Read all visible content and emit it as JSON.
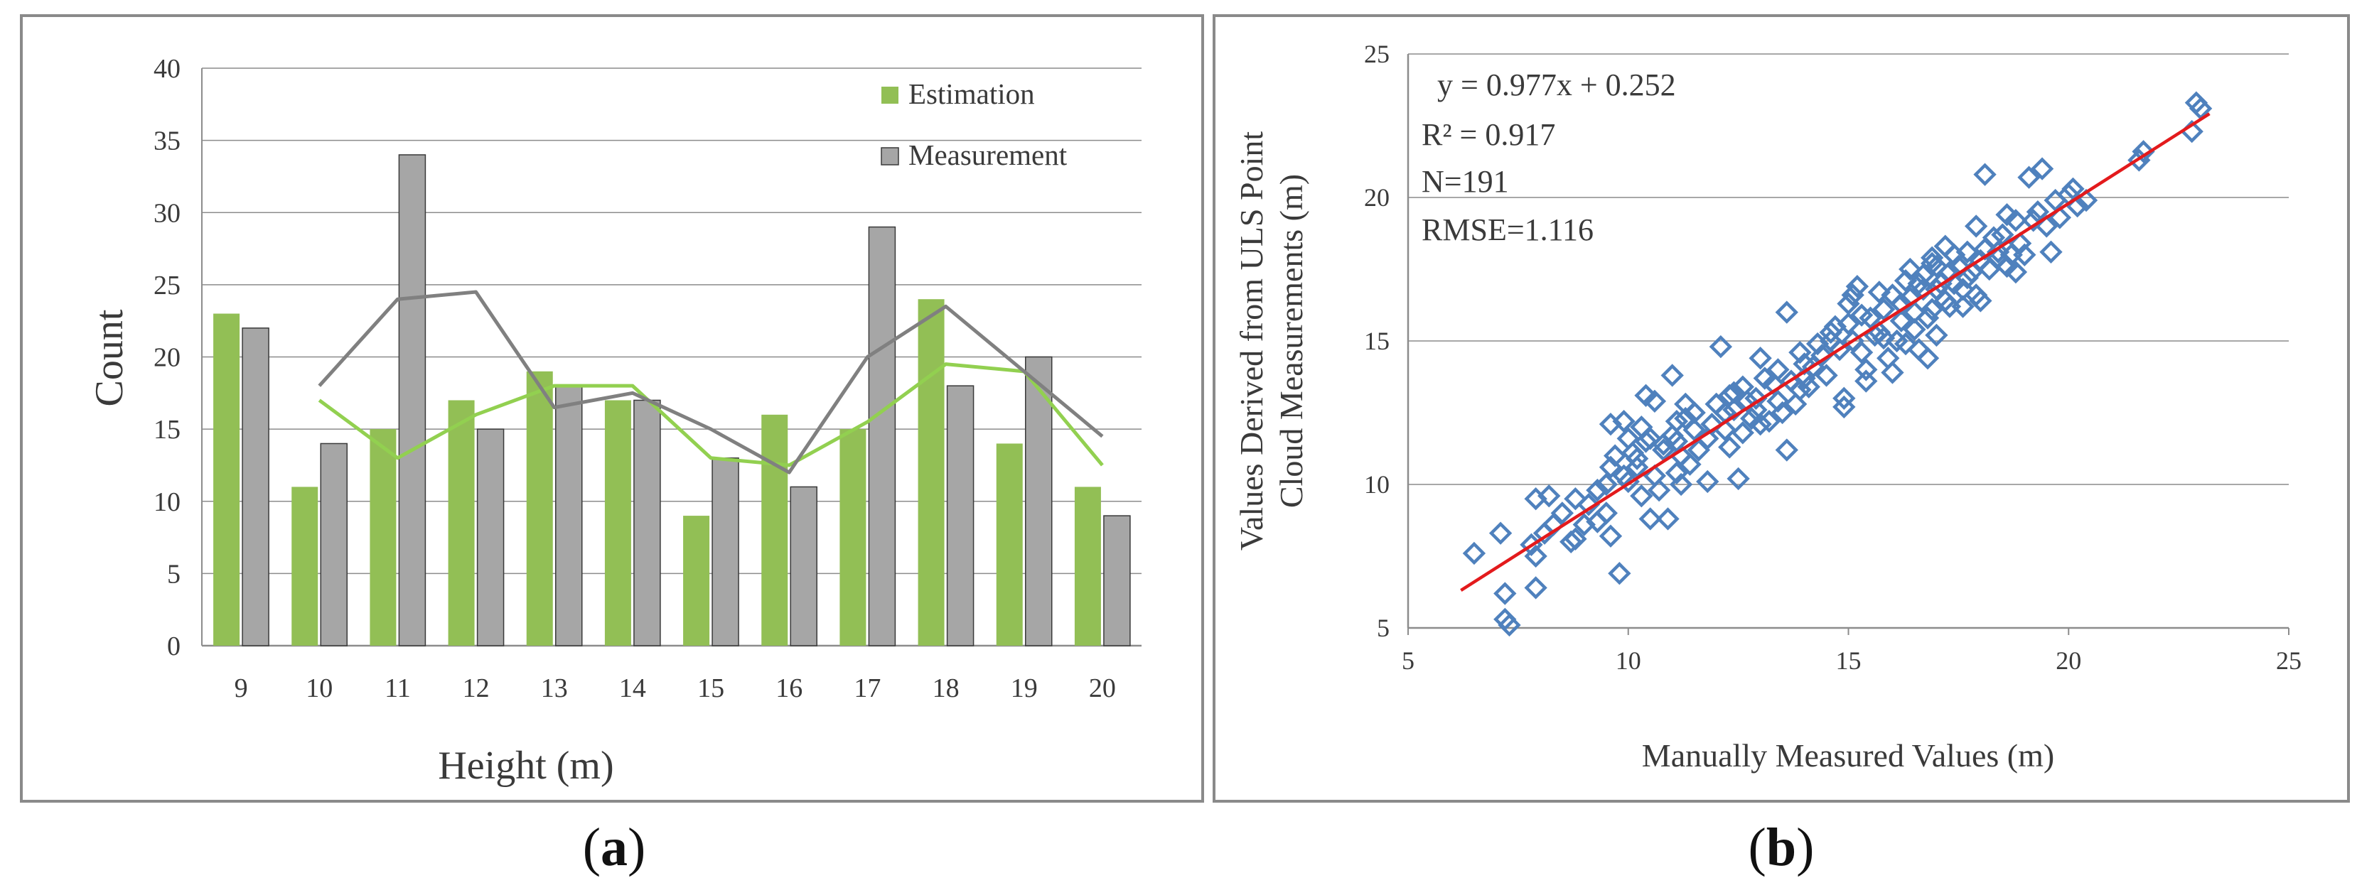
{
  "colors": {
    "estimation": "#92bf55",
    "measurement": "#a6a6a6",
    "estimation_line": "#92d050",
    "measurement_line": "#808080",
    "scatter_marker": "#4f81bd",
    "fit_line": "#e31a1c",
    "grid": "#8c8c8c"
  },
  "chart_data": [
    {
      "type": "bar",
      "panel": "a",
      "xlabel": "Height (m)",
      "ylabel": "Count",
      "ylim": [
        0,
        40
      ],
      "yticks": [
        0,
        5,
        10,
        15,
        20,
        25,
        30,
        35,
        40
      ],
      "categories": [
        "9",
        "10",
        "11",
        "12",
        "13",
        "14",
        "15",
        "16",
        "17",
        "18",
        "19",
        "20"
      ],
      "series": [
        {
          "name": "Estimation",
          "values": [
            23,
            11,
            15,
            17,
            19,
            17,
            9,
            16,
            15,
            24,
            14,
            11
          ]
        },
        {
          "name": "Measurement",
          "values": [
            22,
            14,
            34,
            15,
            18,
            17,
            13,
            11,
            29,
            18,
            20,
            9
          ]
        }
      ],
      "trendlines": [
        {
          "name": "Estimation moving average",
          "series": "Estimation",
          "values": [
            17,
            13,
            16,
            18,
            18,
            13,
            12.5,
            15.5,
            19.5,
            19,
            12.5
          ],
          "start_category": "10"
        },
        {
          "name": "Measurement moving average",
          "series": "Measurement",
          "values": [
            18,
            24,
            24.5,
            16.5,
            17.5,
            15,
            12,
            20,
            23.5,
            19,
            14.5
          ],
          "start_category": "10"
        }
      ],
      "legend": {
        "placement": "top-right",
        "entries": [
          "Estimation",
          "Measurement"
        ]
      },
      "grid": true
    },
    {
      "type": "scatter",
      "panel": "b",
      "xlabel": "Manually Measured Values (m)",
      "ylabel_line1": "Values Derived from ULS Point",
      "ylabel_line2": "Cloud Measurements (m)",
      "xlim": [
        5,
        25
      ],
      "ylim": [
        5,
        25
      ],
      "xticks": [
        5,
        10,
        15,
        20,
        25
      ],
      "yticks": [
        5,
        10,
        15,
        20,
        25
      ],
      "annotations": [
        "y = 0.977x + 0.252",
        "R² = 0.917",
        "N=191",
        "RMSE=1.116"
      ],
      "fit": {
        "slope": 0.977,
        "intercept": 0.252,
        "x_range": [
          6.2,
          23.2
        ]
      },
      "points": [
        [
          6.5,
          7.6
        ],
        [
          7.1,
          8.3
        ],
        [
          7.2,
          6.2
        ],
        [
          7.2,
          5.3
        ],
        [
          7.3,
          5.1
        ],
        [
          7.8,
          7.9
        ],
        [
          7.9,
          7.5
        ],
        [
          7.9,
          6.4
        ],
        [
          7.9,
          9.5
        ],
        [
          8.1,
          8.3
        ],
        [
          8.2,
          9.6
        ],
        [
          8.3,
          8.6
        ],
        [
          8.7,
          8.0
        ],
        [
          8.8,
          8.1
        ],
        [
          8.8,
          9.5
        ],
        [
          9.1,
          9.3
        ],
        [
          9.3,
          8.7
        ],
        [
          9.5,
          9.0
        ],
        [
          9.6,
          8.2
        ],
        [
          9.6,
          12.1
        ],
        [
          9.6,
          10.6
        ],
        [
          9.7,
          11.0
        ],
        [
          9.8,
          6.9
        ],
        [
          9.9,
          10.3
        ],
        [
          9.9,
          12.2
        ],
        [
          10.0,
          10.1
        ],
        [
          10.1,
          11.1
        ],
        [
          10.2,
          10.9
        ],
        [
          10.3,
          12.0
        ],
        [
          10.3,
          9.6
        ],
        [
          10.4,
          13.1
        ],
        [
          10.4,
          11.5
        ],
        [
          10.5,
          8.8
        ],
        [
          10.5,
          11.6
        ],
        [
          10.6,
          10.3
        ],
        [
          10.6,
          12.9
        ],
        [
          10.7,
          9.8
        ],
        [
          10.8,
          11.2
        ],
        [
          10.9,
          8.8
        ],
        [
          11.0,
          11.7
        ],
        [
          11.0,
          13.8
        ],
        [
          11.1,
          12.2
        ],
        [
          11.1,
          10.4
        ],
        [
          11.2,
          11.0
        ],
        [
          11.2,
          10.0
        ],
        [
          11.3,
          12.3
        ],
        [
          11.3,
          12.8
        ],
        [
          11.4,
          10.7
        ],
        [
          11.5,
          12.5
        ],
        [
          11.6,
          11.2
        ],
        [
          11.8,
          11.6
        ],
        [
          11.9,
          12.1
        ],
        [
          12.1,
          14.8
        ],
        [
          12.2,
          12.5
        ],
        [
          12.3,
          13.1
        ],
        [
          12.3,
          11.3
        ],
        [
          12.4,
          13.2
        ],
        [
          12.4,
          12.6
        ],
        [
          12.5,
          10.2
        ],
        [
          12.6,
          11.8
        ],
        [
          12.7,
          12.9
        ],
        [
          12.8,
          12.3
        ],
        [
          12.9,
          13.0
        ],
        [
          13.0,
          12.1
        ],
        [
          13.1,
          13.7
        ],
        [
          13.2,
          12.2
        ],
        [
          13.3,
          13.5
        ],
        [
          13.4,
          14.0
        ],
        [
          13.5,
          12.5
        ],
        [
          13.6,
          11.2
        ],
        [
          13.6,
          16.0
        ],
        [
          13.7,
          13.6
        ],
        [
          13.8,
          12.8
        ],
        [
          13.9,
          13.3
        ],
        [
          14.0,
          14.2
        ],
        [
          14.2,
          14.1
        ],
        [
          14.3,
          14.9
        ],
        [
          14.4,
          14.5
        ],
        [
          14.5,
          13.8
        ],
        [
          14.6,
          15.3
        ],
        [
          14.7,
          15.5
        ],
        [
          14.8,
          14.7
        ],
        [
          14.9,
          12.7
        ],
        [
          14.9,
          13.0
        ],
        [
          15.0,
          16.3
        ],
        [
          15.0,
          15.6
        ],
        [
          15.1,
          16.6
        ],
        [
          15.1,
          15.0
        ],
        [
          15.2,
          16.9
        ],
        [
          15.3,
          14.6
        ],
        [
          15.4,
          14.0
        ],
        [
          15.5,
          15.8
        ],
        [
          15.6,
          15.2
        ],
        [
          15.7,
          15.3
        ],
        [
          15.7,
          16.7
        ],
        [
          15.8,
          16.1
        ],
        [
          15.9,
          14.4
        ],
        [
          16.0,
          13.9
        ],
        [
          16.1,
          15.0
        ],
        [
          16.2,
          16.3
        ],
        [
          16.2,
          15.7
        ],
        [
          16.3,
          14.9
        ],
        [
          16.4,
          17.5
        ],
        [
          16.4,
          16.5
        ],
        [
          16.5,
          16.0
        ],
        [
          16.5,
          15.4
        ],
        [
          16.6,
          17.0
        ],
        [
          16.6,
          14.7
        ],
        [
          16.7,
          16.8
        ],
        [
          16.7,
          17.3
        ],
        [
          16.8,
          15.8
        ],
        [
          16.8,
          14.4
        ],
        [
          16.9,
          17.7
        ],
        [
          16.9,
          16.1
        ],
        [
          17.0,
          15.2
        ],
        [
          17.0,
          16.8
        ],
        [
          17.1,
          17.0
        ],
        [
          17.2,
          16.4
        ],
        [
          17.3,
          17.4
        ],
        [
          17.3,
          16.2
        ],
        [
          17.4,
          18.0
        ],
        [
          17.4,
          17.0
        ],
        [
          17.5,
          17.6
        ],
        [
          17.6,
          16.8
        ],
        [
          17.7,
          18.1
        ],
        [
          17.7,
          17.2
        ],
        [
          17.8,
          17.4
        ],
        [
          17.9,
          16.6
        ],
        [
          18.0,
          17.8
        ],
        [
          18.0,
          16.4
        ],
        [
          18.1,
          20.8
        ],
        [
          18.1,
          18.2
        ],
        [
          18.2,
          17.5
        ],
        [
          18.3,
          18.6
        ],
        [
          18.4,
          17.9
        ],
        [
          18.5,
          18.7
        ],
        [
          18.6,
          17.6
        ],
        [
          18.7,
          18.0
        ],
        [
          18.8,
          17.4
        ],
        [
          18.9,
          18.4
        ],
        [
          19.0,
          18.0
        ],
        [
          19.1,
          20.7
        ],
        [
          19.2,
          19.2
        ],
        [
          19.4,
          21.0
        ],
        [
          19.5,
          19.0
        ],
        [
          19.6,
          18.1
        ],
        [
          19.7,
          19.9
        ],
        [
          19.8,
          19.3
        ],
        [
          20.0,
          20.1
        ],
        [
          20.1,
          20.3
        ],
        [
          20.2,
          19.7
        ],
        [
          21.6,
          21.3
        ],
        [
          21.7,
          21.6
        ],
        [
          22.8,
          22.3
        ],
        [
          22.9,
          23.3
        ],
        [
          23.0,
          23.1
        ],
        [
          17.6,
          16.2
        ],
        [
          17.9,
          19.0
        ],
        [
          15.4,
          13.6
        ],
        [
          11.8,
          10.1
        ],
        [
          9.3,
          9.8
        ],
        [
          10.8,
          11.4
        ],
        [
          12.9,
          12.6
        ],
        [
          14.1,
          13.4
        ],
        [
          13.0,
          14.4
        ],
        [
          18.6,
          19.4
        ],
        [
          16.0,
          16.6
        ],
        [
          14.6,
          15.0
        ],
        [
          12.0,
          12.8
        ],
        [
          11.5,
          11.9
        ],
        [
          10.2,
          10.6
        ],
        [
          8.5,
          9.0
        ],
        [
          9.0,
          8.6
        ],
        [
          19.3,
          19.5
        ],
        [
          17.2,
          18.3
        ],
        [
          16.9,
          17.9
        ],
        [
          15.8,
          15.1
        ],
        [
          13.4,
          12.9
        ],
        [
          12.6,
          13.4
        ],
        [
          11.1,
          11.5
        ],
        [
          10.0,
          11.6
        ],
        [
          18.4,
          18.1
        ],
        [
          17.0,
          17.6
        ],
        [
          15.3,
          15.9
        ],
        [
          14.0,
          13.7
        ],
        [
          20.4,
          19.9
        ],
        [
          18.8,
          19.2
        ],
        [
          16.3,
          17.1
        ],
        [
          13.9,
          14.6
        ],
        [
          12.2,
          11.9
        ],
        [
          9.5,
          10.0
        ]
      ],
      "grid": true
    }
  ],
  "sublabels": {
    "a_open": "(",
    "a_letter": "a",
    "a_close": ")",
    "b_open": "(",
    "b_letter": "b",
    "b_close": ")"
  }
}
